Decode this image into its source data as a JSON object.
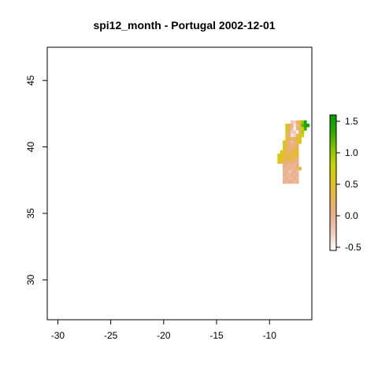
{
  "chart_data": {
    "type": "heatmap",
    "title": "spi12_month - Portugal 2002-12-01",
    "xlabel": "",
    "ylabel": "",
    "xlim": [
      -31,
      -6
    ],
    "ylim": [
      27,
      47.5
    ],
    "x_ticks": [
      -30,
      -25,
      -20,
      -15,
      -10
    ],
    "y_ticks": [
      30,
      35,
      40,
      45
    ],
    "grid": false,
    "legend": {
      "placement": "right",
      "ticks": [
        -0.5,
        0.0,
        0.5,
        1.0,
        1.5
      ],
      "range": [
        -0.55,
        1.6
      ],
      "colors": [
        "#ffffff",
        "#f2cdbf",
        "#ebb08b",
        "#e8b25a",
        "#e0c21c",
        "#c8d400",
        "#84c400",
        "#2ea800",
        "#00a000"
      ]
    },
    "cell_size_deg": 0.25,
    "values": [
      [
        -8.0,
        41.75,
        -0.2
      ],
      [
        -7.75,
        41.75,
        -0.3
      ],
      [
        -7.5,
        41.75,
        0.1
      ],
      [
        -7.25,
        41.75,
        0.5
      ],
      [
        -7.0,
        41.75,
        1.0
      ],
      [
        -6.75,
        41.75,
        1.5
      ],
      [
        -8.5,
        41.5,
        0.6
      ],
      [
        -8.25,
        41.5,
        0.3
      ],
      [
        -8.0,
        41.5,
        0.0
      ],
      [
        -7.75,
        41.5,
        -0.4
      ],
      [
        -7.5,
        41.5,
        -0.1
      ],
      [
        -7.25,
        41.5,
        0.4
      ],
      [
        -7.0,
        41.5,
        1.2
      ],
      [
        -6.75,
        41.5,
        1.4
      ],
      [
        -6.5,
        41.5,
        1.5
      ],
      [
        -8.5,
        41.25,
        0.7
      ],
      [
        -8.25,
        41.25,
        0.2
      ],
      [
        -8.0,
        41.25,
        -0.1
      ],
      [
        -7.75,
        41.25,
        -0.5
      ],
      [
        -7.5,
        41.25,
        0.0
      ],
      [
        -7.25,
        41.25,
        0.3
      ],
      [
        -7.0,
        41.25,
        0.8
      ],
      [
        -6.75,
        41.25,
        1.3
      ],
      [
        -8.5,
        41.0,
        0.5
      ],
      [
        -8.25,
        41.0,
        0.1
      ],
      [
        -8.0,
        41.0,
        -0.3
      ],
      [
        -7.75,
        41.0,
        -0.2
      ],
      [
        -7.5,
        41.0,
        -0.5
      ],
      [
        -7.25,
        41.0,
        0.2
      ],
      [
        -7.0,
        41.0,
        0.9
      ],
      [
        -8.5,
        40.75,
        0.4
      ],
      [
        -8.25,
        40.75,
        0.0
      ],
      [
        -8.0,
        40.75,
        -0.4
      ],
      [
        -7.75,
        40.75,
        -0.3
      ],
      [
        -7.5,
        40.75,
        0.1
      ],
      [
        -7.25,
        40.75,
        0.6
      ],
      [
        -7.0,
        40.75,
        0.7
      ],
      [
        -8.5,
        40.5,
        0.5
      ],
      [
        -8.25,
        40.5,
        0.3
      ],
      [
        -8.0,
        40.5,
        0.1
      ],
      [
        -7.75,
        40.5,
        0.2
      ],
      [
        -7.5,
        40.5,
        0.4
      ],
      [
        -7.25,
        40.5,
        0.6
      ],
      [
        -8.75,
        40.25,
        0.6
      ],
      [
        -8.5,
        40.25,
        0.2
      ],
      [
        -8.25,
        40.25,
        0.0
      ],
      [
        -8.0,
        40.25,
        -0.1
      ],
      [
        -7.75,
        40.25,
        0.0
      ],
      [
        -7.5,
        40.25,
        0.5
      ],
      [
        -7.25,
        40.25,
        0.6
      ],
      [
        -8.75,
        40.0,
        0.7
      ],
      [
        -8.5,
        40.0,
        0.3
      ],
      [
        -8.25,
        40.0,
        0.1
      ],
      [
        -8.0,
        40.0,
        0.0
      ],
      [
        -7.75,
        40.0,
        0.1
      ],
      [
        -7.5,
        40.0,
        0.3
      ],
      [
        -8.75,
        39.75,
        0.6
      ],
      [
        -8.5,
        39.75,
        0.2
      ],
      [
        -8.25,
        39.75,
        0.0
      ],
      [
        -8.0,
        39.75,
        0.1
      ],
      [
        -7.75,
        39.75,
        0.2
      ],
      [
        -7.5,
        39.75,
        0.3
      ],
      [
        -9.0,
        39.5,
        0.7
      ],
      [
        -8.75,
        39.5,
        0.5
      ],
      [
        -8.5,
        39.5,
        0.3
      ],
      [
        -8.25,
        39.5,
        0.1
      ],
      [
        -8.0,
        39.5,
        0.3
      ],
      [
        -7.75,
        39.5,
        0.4
      ],
      [
        -7.5,
        39.5,
        0.5
      ],
      [
        -9.25,
        39.25,
        0.6
      ],
      [
        -9.0,
        39.25,
        0.6
      ],
      [
        -8.75,
        39.25,
        0.4
      ],
      [
        -8.5,
        39.25,
        0.2
      ],
      [
        -8.25,
        39.25,
        0.3
      ],
      [
        -8.0,
        39.25,
        0.4
      ],
      [
        -7.75,
        39.25,
        0.5
      ],
      [
        -7.5,
        39.25,
        0.4
      ],
      [
        -9.25,
        39.0,
        0.7
      ],
      [
        -9.0,
        39.0,
        0.5
      ],
      [
        -8.75,
        39.0,
        0.4
      ],
      [
        -8.5,
        39.0,
        0.3
      ],
      [
        -8.25,
        39.0,
        0.4
      ],
      [
        -8.0,
        39.0,
        0.3
      ],
      [
        -7.75,
        39.0,
        0.2
      ],
      [
        -7.5,
        39.0,
        0.1
      ],
      [
        -9.25,
        38.75,
        0.6
      ],
      [
        -9.0,
        38.75,
        0.3
      ],
      [
        -8.75,
        38.75,
        0.2
      ],
      [
        -8.5,
        38.75,
        0.1
      ],
      [
        -8.25,
        38.75,
        0.2
      ],
      [
        -8.0,
        38.75,
        0.1
      ],
      [
        -7.75,
        38.75,
        0.0
      ],
      [
        -7.5,
        38.75,
        0.0
      ],
      [
        -8.75,
        38.5,
        0.1
      ],
      [
        -8.5,
        38.5,
        0.0
      ],
      [
        -8.25,
        38.5,
        -0.1
      ],
      [
        -8.0,
        38.5,
        0.0
      ],
      [
        -7.75,
        38.5,
        -0.1
      ],
      [
        -7.5,
        38.5,
        0.2
      ],
      [
        -8.75,
        38.25,
        0.0
      ],
      [
        -8.5,
        38.25,
        -0.1
      ],
      [
        -8.25,
        38.25,
        0.0
      ],
      [
        -8.0,
        38.25,
        -0.1
      ],
      [
        -7.75,
        38.25,
        0.0
      ],
      [
        -7.5,
        38.25,
        0.0
      ],
      [
        -7.25,
        38.25,
        0.5
      ],
      [
        -8.75,
        38.0,
        -0.1
      ],
      [
        -8.5,
        38.0,
        0.0
      ],
      [
        -8.25,
        38.0,
        -0.2
      ],
      [
        -8.0,
        38.0,
        -0.1
      ],
      [
        -7.75,
        38.0,
        0.0
      ],
      [
        -7.5,
        38.0,
        -0.1
      ],
      [
        -8.75,
        37.75,
        0.0
      ],
      [
        -8.5,
        37.75,
        -0.1
      ],
      [
        -8.25,
        37.75,
        -0.1
      ],
      [
        -8.0,
        37.75,
        0.0
      ],
      [
        -7.75,
        37.75,
        -0.1
      ],
      [
        -7.5,
        37.75,
        0.0
      ],
      [
        -8.75,
        37.5,
        -0.1
      ],
      [
        -8.5,
        37.5,
        0.0
      ],
      [
        -8.25,
        37.5,
        -0.1
      ],
      [
        -8.0,
        37.5,
        -0.1
      ],
      [
        -7.75,
        37.5,
        0.0
      ],
      [
        -7.5,
        37.5,
        -0.1
      ],
      [
        -8.75,
        37.25,
        0.0
      ],
      [
        -8.5,
        37.25,
        -0.1
      ],
      [
        -8.25,
        37.25,
        0.0
      ],
      [
        -8.0,
        37.25,
        0.0
      ],
      [
        -7.75,
        37.25,
        -0.1
      ],
      [
        -7.5,
        37.25,
        0.0
      ]
    ]
  }
}
